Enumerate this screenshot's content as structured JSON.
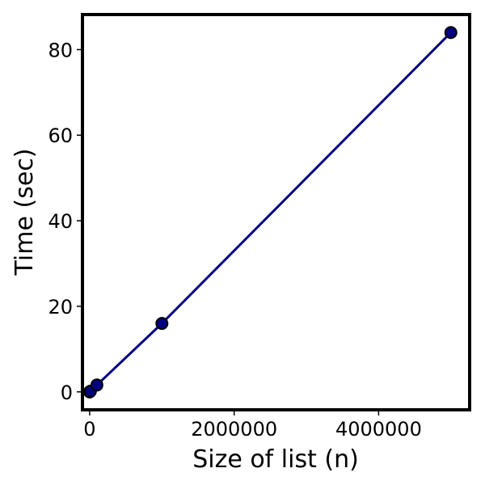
{
  "chart_data": {
    "type": "line",
    "title": "",
    "xlabel": "Size of list (n)",
    "ylabel": "Time (sec)",
    "xlim": [
      -100000,
      5260000
    ],
    "ylim": [
      -4.2,
      88.2
    ],
    "x_ticks": [
      0,
      2000000,
      4000000
    ],
    "x_tick_labels": [
      "0",
      "2000000",
      "4000000"
    ],
    "y_ticks": [
      0,
      20,
      40,
      60,
      80
    ],
    "y_tick_labels": [
      "0",
      "20",
      "40",
      "60",
      "80"
    ],
    "grid": false,
    "legend": "none",
    "series": [
      {
        "x": [
          10,
          100,
          1000,
          10000,
          100000,
          1000000,
          5000000
        ],
        "y": [
          0.0,
          0.0,
          0.02,
          0.16,
          1.6,
          16.0,
          84.0
        ],
        "color": "#000080",
        "marker": "circle",
        "marker_edge_color": "#000000"
      }
    ]
  }
}
